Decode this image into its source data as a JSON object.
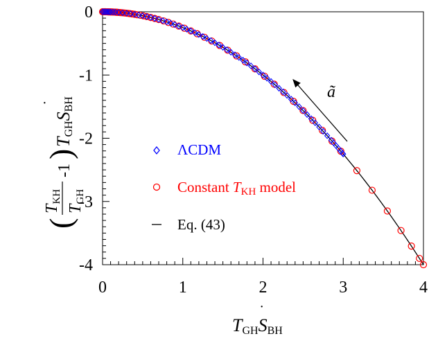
{
  "chart_data": {
    "type": "scatter",
    "xlabel": {
      "base": "T",
      "base_sub": "GH",
      "dot_letter": "S",
      "dot_sub": "BH"
    },
    "ylabel": {
      "frac_num": "T",
      "frac_num_sub": "KH",
      "frac_den": "T",
      "frac_den_sub": "GH",
      "minus_one": "-1",
      "after": "T",
      "after_sub": "GH",
      "dot_letter": "S",
      "dot_sub": "BH"
    },
    "xlim": [
      0,
      4
    ],
    "ylim": [
      -4,
      0
    ],
    "xticks": [
      "0",
      "1",
      "2",
      "3",
      "4"
    ],
    "yticks": [
      "0",
      "-1",
      "-2",
      "-3",
      "-4"
    ],
    "annotation": {
      "text": "ã",
      "arrow_from": [
        3.05,
        -2.05
      ],
      "arrow_to": [
        2.38,
        -1.08
      ]
    },
    "legend": {
      "position": "lower-left",
      "items": [
        {
          "label": "ΛCDM",
          "marker": "diamond",
          "color": "#0000ff"
        },
        {
          "label_pre": "Constant ",
          "label_T": "T",
          "label_sub": "KH",
          "label_post": " model",
          "marker": "circle",
          "color": "#ff0000"
        },
        {
          "label": "Eq. (43)",
          "marker": "line",
          "color": "#000000"
        }
      ]
    },
    "series": [
      {
        "name": "ΛCDM",
        "marker": "diamond",
        "color": "#0000ff",
        "x": [
          0.0,
          0.02,
          0.04,
          0.06,
          0.08,
          0.1,
          0.13,
          0.16,
          0.2,
          0.25,
          0.3,
          0.35,
          0.4,
          0.45,
          0.5,
          0.55,
          0.6,
          0.65,
          0.7,
          0.75,
          0.8,
          0.85,
          0.9,
          0.95,
          1.0,
          1.05,
          1.1,
          1.15,
          1.2,
          1.25,
          1.3,
          1.35,
          1.4,
          1.45,
          1.5,
          1.55,
          1.6,
          1.65,
          1.7,
          1.75,
          1.8,
          1.85,
          1.9,
          1.95,
          2.0,
          2.05,
          2.1,
          2.15,
          2.2,
          2.25,
          2.3,
          2.35,
          2.4,
          2.45,
          2.5,
          2.55,
          2.6,
          2.65,
          2.7,
          2.75,
          2.8,
          2.85,
          2.88,
          2.91,
          2.94,
          2.97,
          2.99,
          3.0
        ],
        "y": [
          0.0,
          -0.0001,
          -0.0004,
          -0.0009,
          -0.0016,
          -0.0025,
          -0.0042,
          -0.0064,
          -0.01,
          -0.0156,
          -0.0225,
          -0.0306,
          -0.04,
          -0.0506,
          -0.0625,
          -0.0756,
          -0.09,
          -0.1056,
          -0.1225,
          -0.1406,
          -0.16,
          -0.1806,
          -0.2025,
          -0.2256,
          -0.25,
          -0.2756,
          -0.3025,
          -0.3306,
          -0.36,
          -0.3906,
          -0.4225,
          -0.4556,
          -0.49,
          -0.5256,
          -0.5625,
          -0.6006,
          -0.64,
          -0.6806,
          -0.7225,
          -0.7656,
          -0.81,
          -0.8556,
          -0.9025,
          -0.9506,
          -1.0,
          -1.0506,
          -1.1025,
          -1.1556,
          -1.21,
          -1.2656,
          -1.3225,
          -1.3806,
          -1.44,
          -1.5006,
          -1.5625,
          -1.6256,
          -1.69,
          -1.7556,
          -1.8225,
          -1.8906,
          -1.96,
          -2.0306,
          -2.0736,
          -2.117,
          -2.1609,
          -2.2052,
          -2.235,
          -2.25
        ]
      },
      {
        "name_pre": "Constant ",
        "name_T": "T",
        "name_sub": "KH",
        "name_post": " model",
        "marker": "circle",
        "color": "#ff0000",
        "x": [
          0.0,
          0.01,
          0.02,
          0.03,
          0.04,
          0.05,
          0.06,
          0.07,
          0.08,
          0.09,
          0.1,
          0.11,
          0.12,
          0.13,
          0.14,
          0.15,
          0.16,
          0.17,
          0.18,
          0.19,
          0.2,
          0.22,
          0.24,
          0.26,
          0.28,
          0.3,
          0.32,
          0.34,
          0.37,
          0.4,
          0.43,
          0.47,
          0.51,
          0.55,
          0.6,
          0.65,
          0.7,
          0.76,
          0.82,
          0.88,
          0.95,
          1.02,
          1.1,
          1.18,
          1.27,
          1.36,
          1.46,
          1.56,
          1.67,
          1.78,
          1.9,
          2.02,
          2.14,
          2.26,
          2.38,
          2.5,
          2.62,
          2.74,
          2.86,
          2.97,
          3.17,
          3.36,
          3.55,
          3.72,
          3.85,
          3.95,
          4.0
        ],
        "y": [
          0.0,
          -0.0,
          -0.0001,
          -0.0002,
          -0.0004,
          -0.0006,
          -0.0009,
          -0.0012,
          -0.0016,
          -0.002,
          -0.0025,
          -0.003,
          -0.0036,
          -0.0042,
          -0.0049,
          -0.0056,
          -0.0064,
          -0.0072,
          -0.0081,
          -0.009,
          -0.01,
          -0.0121,
          -0.0144,
          -0.0169,
          -0.0196,
          -0.0225,
          -0.0256,
          -0.0289,
          -0.0342,
          -0.04,
          -0.0462,
          -0.0552,
          -0.065,
          -0.0756,
          -0.09,
          -0.1056,
          -0.1225,
          -0.1444,
          -0.1681,
          -0.1936,
          -0.2256,
          -0.2601,
          -0.3025,
          -0.3481,
          -0.4032,
          -0.4624,
          -0.5329,
          -0.6084,
          -0.6972,
          -0.7921,
          -0.9025,
          -1.0201,
          -1.1449,
          -1.2769,
          -1.4161,
          -1.5625,
          -1.7161,
          -1.8769,
          -2.0449,
          -2.2052,
          -2.5122,
          -2.8224,
          -3.1506,
          -3.4596,
          -3.7056,
          -3.9006,
          -4.0
        ]
      },
      {
        "name": "Eq. (43)",
        "marker": "line",
        "color": "#000000",
        "formula": "y = -x^2/4"
      }
    ]
  }
}
